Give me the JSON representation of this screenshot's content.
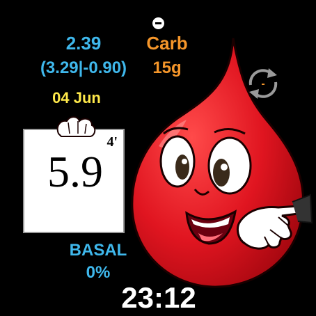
{
  "header": {
    "status_icon": "minus-circle-icon"
  },
  "iob": {
    "value": "2.39",
    "detail": "(3.29|-0.90)"
  },
  "carb": {
    "label": "Carb",
    "value": "15g"
  },
  "date": "04 Jun",
  "glucose": {
    "value": "5.9",
    "age": "4'"
  },
  "basal": {
    "label": "BASAL",
    "value": "0%"
  },
  "time": "23:12",
  "refresh": {
    "icon": "refresh-icon",
    "symbol": "-"
  },
  "colors": {
    "background": "#000000",
    "iob": "#3fb8ec",
    "carb": "#f5962a",
    "date": "#ffe94a",
    "time": "#ffffff",
    "mascot": "#d8141e"
  }
}
